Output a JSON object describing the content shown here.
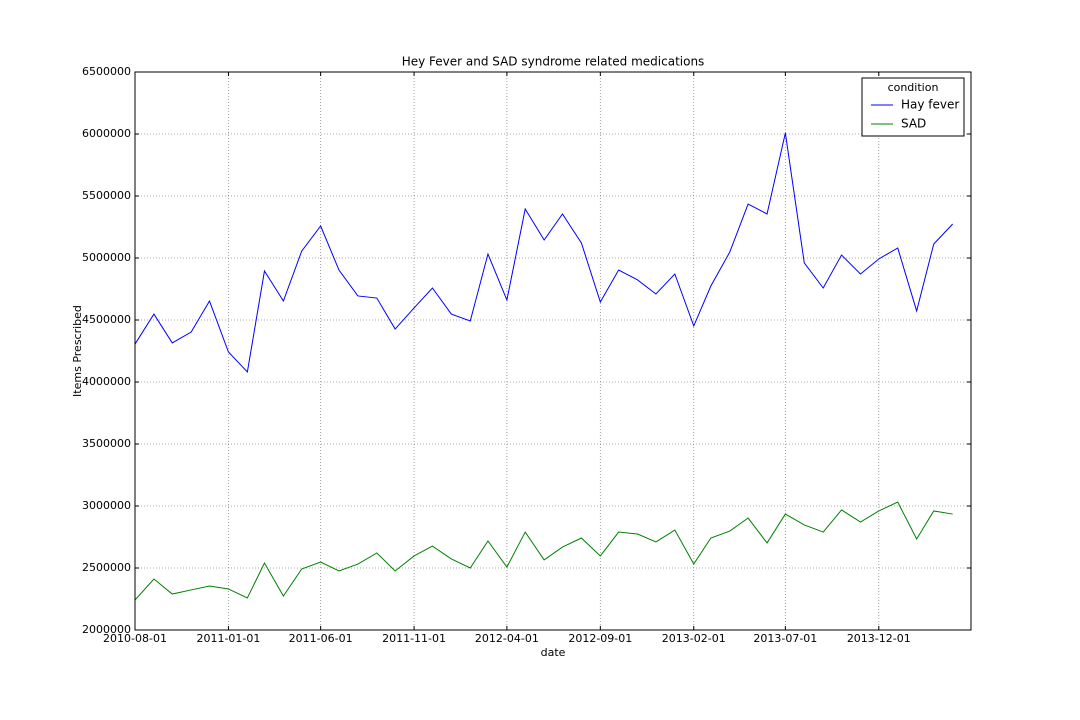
{
  "chart_data": {
    "type": "line",
    "title": "Hey Fever and SAD syndrome related medications",
    "xlabel": "date",
    "ylabel": "Items Prescribed",
    "legend_title": "condition",
    "legend": "upper right",
    "grid": true,
    "x": [
      "2010-08-01",
      "2010-09-01",
      "2010-10-01",
      "2010-11-01",
      "2010-12-01",
      "2011-01-01",
      "2011-02-01",
      "2011-03-01",
      "2011-04-01",
      "2011-05-01",
      "2011-06-01",
      "2011-07-01",
      "2011-08-01",
      "2011-09-01",
      "2011-10-01",
      "2011-11-01",
      "2011-12-01",
      "2012-01-01",
      "2012-02-01",
      "2012-03-01",
      "2012-04-01",
      "2012-05-01",
      "2012-06-01",
      "2012-07-01",
      "2012-08-01",
      "2012-09-01",
      "2012-10-01",
      "2012-11-01",
      "2012-12-01",
      "2013-01-01",
      "2013-02-01",
      "2013-03-01",
      "2013-04-01",
      "2013-05-01",
      "2013-06-01",
      "2013-07-01",
      "2013-08-01",
      "2013-09-01",
      "2013-10-01",
      "2013-11-01",
      "2013-12-01",
      "2014-01-01",
      "2014-02-01",
      "2014-03-01",
      "2014-04-01"
    ],
    "series": [
      {
        "name": "Hay fever",
        "color": "#0000ff",
        "values": [
          4306000,
          4548000,
          4315000,
          4403000,
          4653000,
          4242000,
          4081000,
          4895000,
          4653000,
          5056000,
          5258000,
          4903000,
          4694000,
          4677000,
          4427000,
          4597000,
          4758000,
          4548000,
          4492000,
          5032000,
          4661000,
          5395000,
          5145000,
          5355000,
          5121000,
          4645000,
          4903000,
          4823000,
          4710000,
          4871000,
          4452000,
          4774000,
          5048000,
          5435000,
          5355000,
          6008000,
          4960000,
          4758000,
          5024000,
          4871000,
          4992000,
          5081000,
          4573000,
          5113000,
          5274000
        ]
      },
      {
        "name": "SAD",
        "color": "#008000",
        "values": [
          2242000,
          2411000,
          2290000,
          2323000,
          2355000,
          2331000,
          2258000,
          2540000,
          2274000,
          2492000,
          2548000,
          2476000,
          2532000,
          2621000,
          2476000,
          2597000,
          2677000,
          2573000,
          2500000,
          2718000,
          2508000,
          2790000,
          2565000,
          2669000,
          2742000,
          2597000,
          2790000,
          2774000,
          2710000,
          2806000,
          2532000,
          2742000,
          2798000,
          2903000,
          2702000,
          2935000,
          2847000,
          2790000,
          2968000,
          2871000,
          2960000,
          3032000,
          2734000,
          2960000,
          2935000
        ]
      }
    ],
    "xlim": [
      "2010-08-01",
      "2014-05-01"
    ],
    "xticks": [
      "2010-08-01",
      "2011-01-01",
      "2011-06-01",
      "2011-11-01",
      "2012-04-01",
      "2012-09-01",
      "2013-02-01",
      "2013-07-01",
      "2013-12-01"
    ],
    "ylim": [
      2000000,
      6500000
    ],
    "yticks": [
      2000000,
      2500000,
      3000000,
      3500000,
      4000000,
      4500000,
      5000000,
      5500000,
      6000000,
      6500000
    ]
  }
}
